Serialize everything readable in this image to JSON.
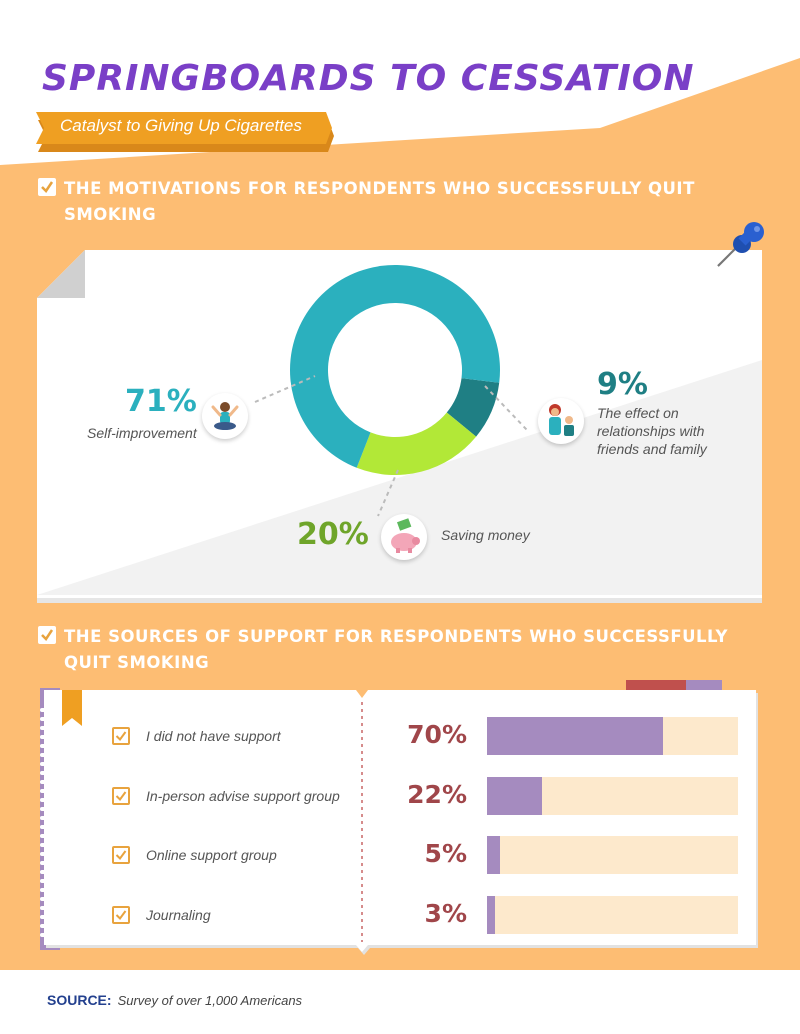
{
  "header": {
    "title": "SPRINGBOARDS TO CESSATION",
    "subtitle": "Catalyst to Giving Up Cigarettes"
  },
  "colors": {
    "background_orange": "#fdbd73",
    "title_purple": "#7a3fc7",
    "banner_orange": "#ef9f22",
    "teal": "#2bb0be",
    "dark_teal": "#1f7f84",
    "lime": "#b2e837",
    "green_text": "#6fa52a",
    "purple_bar": "#a58bbf",
    "bar_track": "#fde9cc",
    "maroon": "#a0464a",
    "navy": "#23408e"
  },
  "section1": {
    "title": "THE MOTIVATIONS FOR RESPONDENTS WHO SUCCESSFULLY QUIT SMOKING"
  },
  "section2": {
    "title": "THE SOURCES OF SUPPORT FOR RESPONDENTS WHO SUCCESSFULLY QUIT SMOKING"
  },
  "chart_data": [
    {
      "type": "pie",
      "labels": [
        "Self-improvement",
        "Saving money",
        "The effect on relationships with friends and family"
      ],
      "values": [
        71,
        20,
        9
      ],
      "value_labels": [
        "71%",
        "20%",
        "9%"
      ],
      "colors": [
        "#2bb0be",
        "#b2e837",
        "#1f7f84"
      ],
      "icons": [
        "meditating-person-icon",
        "piggy-bank-icon",
        "family-icon"
      ]
    },
    {
      "type": "bar",
      "orientation": "horizontal",
      "categories": [
        "I did not have support",
        "In-person advise support group",
        "Online support group",
        "Journaling"
      ],
      "values": [
        70,
        22,
        5,
        3
      ],
      "value_labels": [
        "70%",
        "22%",
        "5%",
        "3%"
      ],
      "xlim": [
        0,
        100
      ]
    }
  ],
  "source": {
    "label": "SOURCE:",
    "text": "Survey of over 1,000 Americans"
  }
}
